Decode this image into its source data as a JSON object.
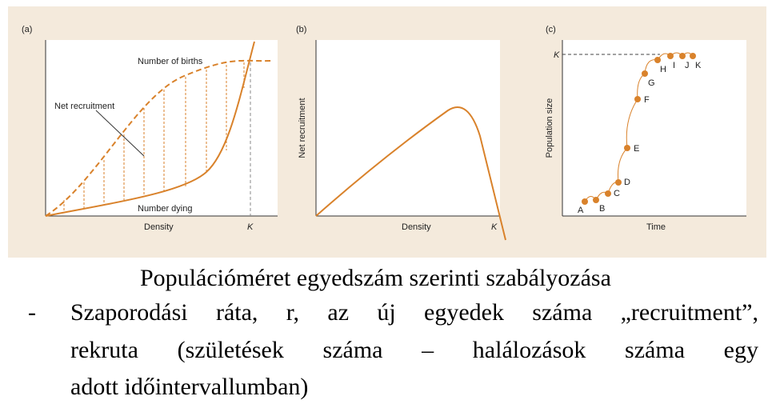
{
  "figure": {
    "panels": [
      {
        "tag": "(a)",
        "x_label": "Density",
        "k_label": "K",
        "births": "Number of births",
        "net": "Net recruitment",
        "dying": "Number dying"
      },
      {
        "tag": "(b)",
        "x_label": "Density",
        "y_label": "Net recruitment",
        "k_label": "K"
      },
      {
        "tag": "(c)",
        "x_label": "Time",
        "y_label": "Population size",
        "k_label": "K",
        "points": [
          "A",
          "B",
          "C",
          "D",
          "E",
          "F",
          "G",
          "H",
          "I",
          "J",
          "K"
        ]
      }
    ]
  },
  "title": "Populációméret egyedszám szerinti szabályozása",
  "bullet": {
    "marker": "-",
    "lines": [
      "Szaporodási ráta, r, az új egyedek száma „recruitment”,",
      "rekruta (születések száma – halálozások száma egy",
      "adott időintervallumban)"
    ]
  }
}
